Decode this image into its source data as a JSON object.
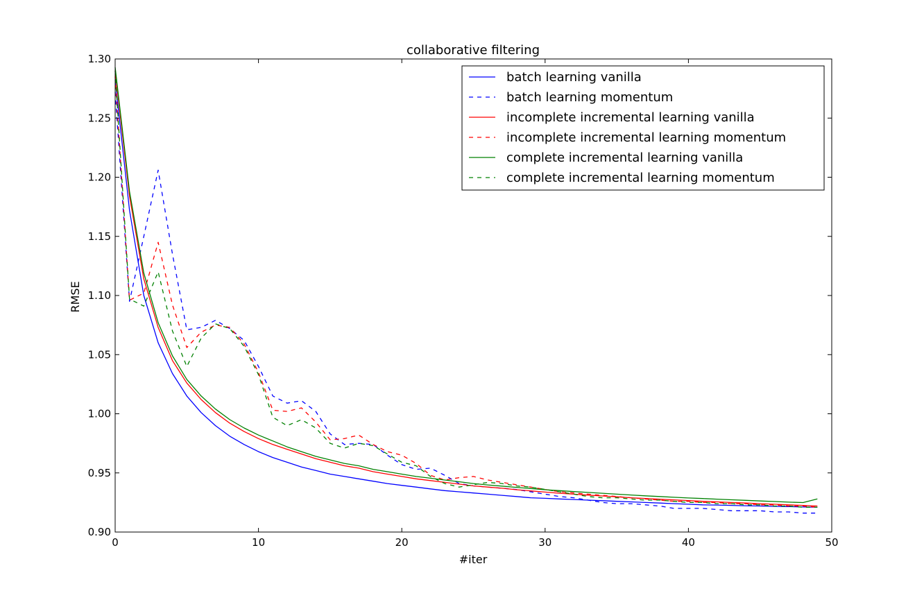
{
  "chart_data": {
    "type": "line",
    "title": "collaborative filtering",
    "xlabel": "#iter",
    "ylabel": "RMSE",
    "xlim": [
      0,
      50
    ],
    "ylim": [
      0.9,
      1.3
    ],
    "xticks": [
      0,
      10,
      20,
      30,
      40,
      50
    ],
    "xtick_labels": [
      "0",
      "10",
      "20",
      "30",
      "40",
      "50"
    ],
    "yticks": [
      0.9,
      0.95,
      1.0,
      1.05,
      1.1,
      1.15,
      1.2,
      1.25,
      1.3
    ],
    "ytick_labels": [
      "0.90",
      "0.95",
      "1.00",
      "1.05",
      "1.10",
      "1.15",
      "1.20",
      "1.25",
      "1.30"
    ],
    "grid": false,
    "legend_position": "top-right",
    "x": [
      0,
      1,
      2,
      3,
      4,
      5,
      6,
      7,
      8,
      9,
      10,
      11,
      12,
      13,
      14,
      15,
      16,
      17,
      18,
      19,
      20,
      21,
      22,
      23,
      24,
      25,
      26,
      27,
      28,
      29,
      30,
      31,
      32,
      33,
      34,
      35,
      36,
      37,
      38,
      39,
      40,
      41,
      42,
      43,
      44,
      45,
      46,
      47,
      48,
      49
    ],
    "series": [
      {
        "name": "batch learning vanilla",
        "color": "#0000ff",
        "dash": "solid",
        "values": [
          1.282,
          1.172,
          1.1,
          1.06,
          1.034,
          1.015,
          1.001,
          0.99,
          0.981,
          0.974,
          0.968,
          0.963,
          0.959,
          0.955,
          0.952,
          0.949,
          0.947,
          0.945,
          0.943,
          0.941,
          0.9395,
          0.938,
          0.9365,
          0.935,
          0.934,
          0.933,
          0.932,
          0.931,
          0.93,
          0.929,
          0.9285,
          0.928,
          0.9275,
          0.927,
          0.9265,
          0.926,
          0.9255,
          0.925,
          0.9245,
          0.924,
          0.9235,
          0.923,
          0.9228,
          0.9225,
          0.9222,
          0.922,
          0.9217,
          0.9215,
          0.9212,
          0.921
        ]
      },
      {
        "name": "batch learning momentum",
        "color": "#0000ff",
        "dash": "dashed",
        "values": [
          1.272,
          1.095,
          1.15,
          1.206,
          1.135,
          1.071,
          1.073,
          1.079,
          1.072,
          1.062,
          1.04,
          1.015,
          1.009,
          1.011,
          1.002,
          0.983,
          0.974,
          0.975,
          0.974,
          0.965,
          0.957,
          0.953,
          0.954,
          0.948,
          0.941,
          0.939,
          0.938,
          0.937,
          0.936,
          0.934,
          0.932,
          0.93,
          0.929,
          0.927,
          0.925,
          0.924,
          0.924,
          0.923,
          0.922,
          0.92,
          0.92,
          0.92,
          0.919,
          0.918,
          0.918,
          0.918,
          0.917,
          0.917,
          0.916,
          0.916
        ]
      },
      {
        "name": "incomplete incremental learning vanilla",
        "color": "#ff0000",
        "dash": "solid",
        "values": [
          1.29,
          1.184,
          1.114,
          1.073,
          1.045,
          1.026,
          1.012,
          1.001,
          0.992,
          0.985,
          0.979,
          0.974,
          0.97,
          0.966,
          0.962,
          0.959,
          0.956,
          0.954,
          0.951,
          0.949,
          0.947,
          0.945,
          0.9435,
          0.942,
          0.9405,
          0.939,
          0.938,
          0.937,
          0.9358,
          0.9348,
          0.9338,
          0.9328,
          0.932,
          0.9312,
          0.9305,
          0.9298,
          0.929,
          0.9284,
          0.9278,
          0.9272,
          0.9266,
          0.926,
          0.9255,
          0.925,
          0.9245,
          0.924,
          0.9235,
          0.923,
          0.9225,
          0.922
        ]
      },
      {
        "name": "incomplete incremental learning momentum",
        "color": "#ff0000",
        "dash": "dashed",
        "values": [
          1.285,
          1.096,
          1.102,
          1.145,
          1.092,
          1.056,
          1.069,
          1.075,
          1.073,
          1.059,
          1.035,
          1.003,
          1.002,
          1.005,
          0.993,
          0.978,
          0.979,
          0.982,
          0.974,
          0.968,
          0.965,
          0.958,
          0.948,
          0.944,
          0.946,
          0.947,
          0.944,
          0.942,
          0.94,
          0.938,
          0.936,
          0.934,
          0.933,
          0.932,
          0.931,
          0.93,
          0.929,
          0.928,
          0.927,
          0.926,
          0.926,
          0.925,
          0.925,
          0.924,
          0.924,
          0.923,
          0.923,
          0.922,
          0.922,
          0.921
        ]
      },
      {
        "name": "complete incremental learning vanilla",
        "color": "#008000",
        "dash": "solid",
        "values": [
          1.293,
          1.188,
          1.119,
          1.077,
          1.049,
          1.029,
          1.015,
          1.004,
          0.995,
          0.988,
          0.982,
          0.977,
          0.972,
          0.968,
          0.964,
          0.961,
          0.958,
          0.956,
          0.953,
          0.951,
          0.949,
          0.947,
          0.9455,
          0.944,
          0.9425,
          0.941,
          0.9398,
          0.9388,
          0.9378,
          0.9368,
          0.9358,
          0.935,
          0.9342,
          0.9335,
          0.9328,
          0.932,
          0.9313,
          0.9306,
          0.93,
          0.9294,
          0.9288,
          0.9283,
          0.9278,
          0.9273,
          0.9268,
          0.9263,
          0.9258,
          0.9253,
          0.9249,
          0.928
        ]
      },
      {
        "name": "complete incremental learning momentum",
        "color": "#008000",
        "dash": "dashed",
        "values": [
          1.29,
          1.097,
          1.091,
          1.12,
          1.07,
          1.04,
          1.064,
          1.076,
          1.072,
          1.057,
          1.033,
          0.997,
          0.99,
          0.995,
          0.988,
          0.975,
          0.971,
          0.975,
          0.973,
          0.966,
          0.959,
          0.956,
          0.947,
          0.941,
          0.938,
          0.94,
          0.942,
          0.941,
          0.939,
          0.938,
          0.936,
          0.934,
          0.932,
          0.93,
          0.929,
          0.929,
          0.928,
          0.927,
          0.927,
          0.926,
          0.925,
          0.925,
          0.924,
          0.924,
          0.923,
          0.923,
          0.922,
          0.922,
          0.921,
          0.921
        ]
      }
    ]
  }
}
